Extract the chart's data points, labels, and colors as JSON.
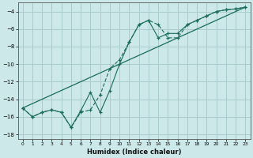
{
  "xlabel": "Humidex (Indice chaleur)",
  "bg_color": "#cce8e8",
  "grid_color": "#aacccc",
  "line_color": "#1a6b5a",
  "xlim": [
    -0.5,
    23.5
  ],
  "ylim": [
    -18.5,
    -3.0
  ],
  "yticks": [
    -18,
    -16,
    -14,
    -12,
    -10,
    -8,
    -6,
    -4
  ],
  "xticks": [
    0,
    1,
    2,
    3,
    4,
    5,
    6,
    7,
    8,
    9,
    10,
    11,
    12,
    13,
    14,
    15,
    16,
    17,
    18,
    19,
    20,
    21,
    22,
    23
  ],
  "line1_x": [
    0,
    1,
    2,
    3,
    4,
    5,
    6,
    7,
    8,
    9,
    10,
    11,
    12,
    13,
    14,
    15,
    16,
    17,
    18,
    19,
    20,
    21,
    22,
    23
  ],
  "line1_y": [
    -15.0,
    -16.0,
    -15.5,
    -15.2,
    -15.5,
    -17.2,
    -15.5,
    -15.2,
    -13.5,
    -10.5,
    -9.5,
    -7.5,
    -5.5,
    -5.0,
    -5.5,
    -7.0,
    -7.0,
    -5.5,
    -5.0,
    -4.5,
    -4.0,
    -3.8,
    -3.7,
    -3.5
  ],
  "line2_x": [
    0,
    1,
    2,
    3,
    4,
    5,
    6,
    7,
    8,
    9,
    10,
    11,
    12,
    13,
    14,
    15,
    16,
    17,
    18,
    19,
    20,
    21,
    22,
    23
  ],
  "line2_y": [
    -15.0,
    -16.0,
    -15.5,
    -15.2,
    -15.5,
    -17.2,
    -15.3,
    -13.2,
    -15.5,
    -13.0,
    -10.0,
    -7.5,
    -5.5,
    -5.0,
    -7.0,
    -6.5,
    -6.5,
    -5.5,
    -5.0,
    -4.5,
    -4.0,
    -3.8,
    -3.7,
    -3.5
  ],
  "line3_x": [
    0,
    23
  ],
  "line3_y": [
    -15.0,
    -3.5
  ]
}
